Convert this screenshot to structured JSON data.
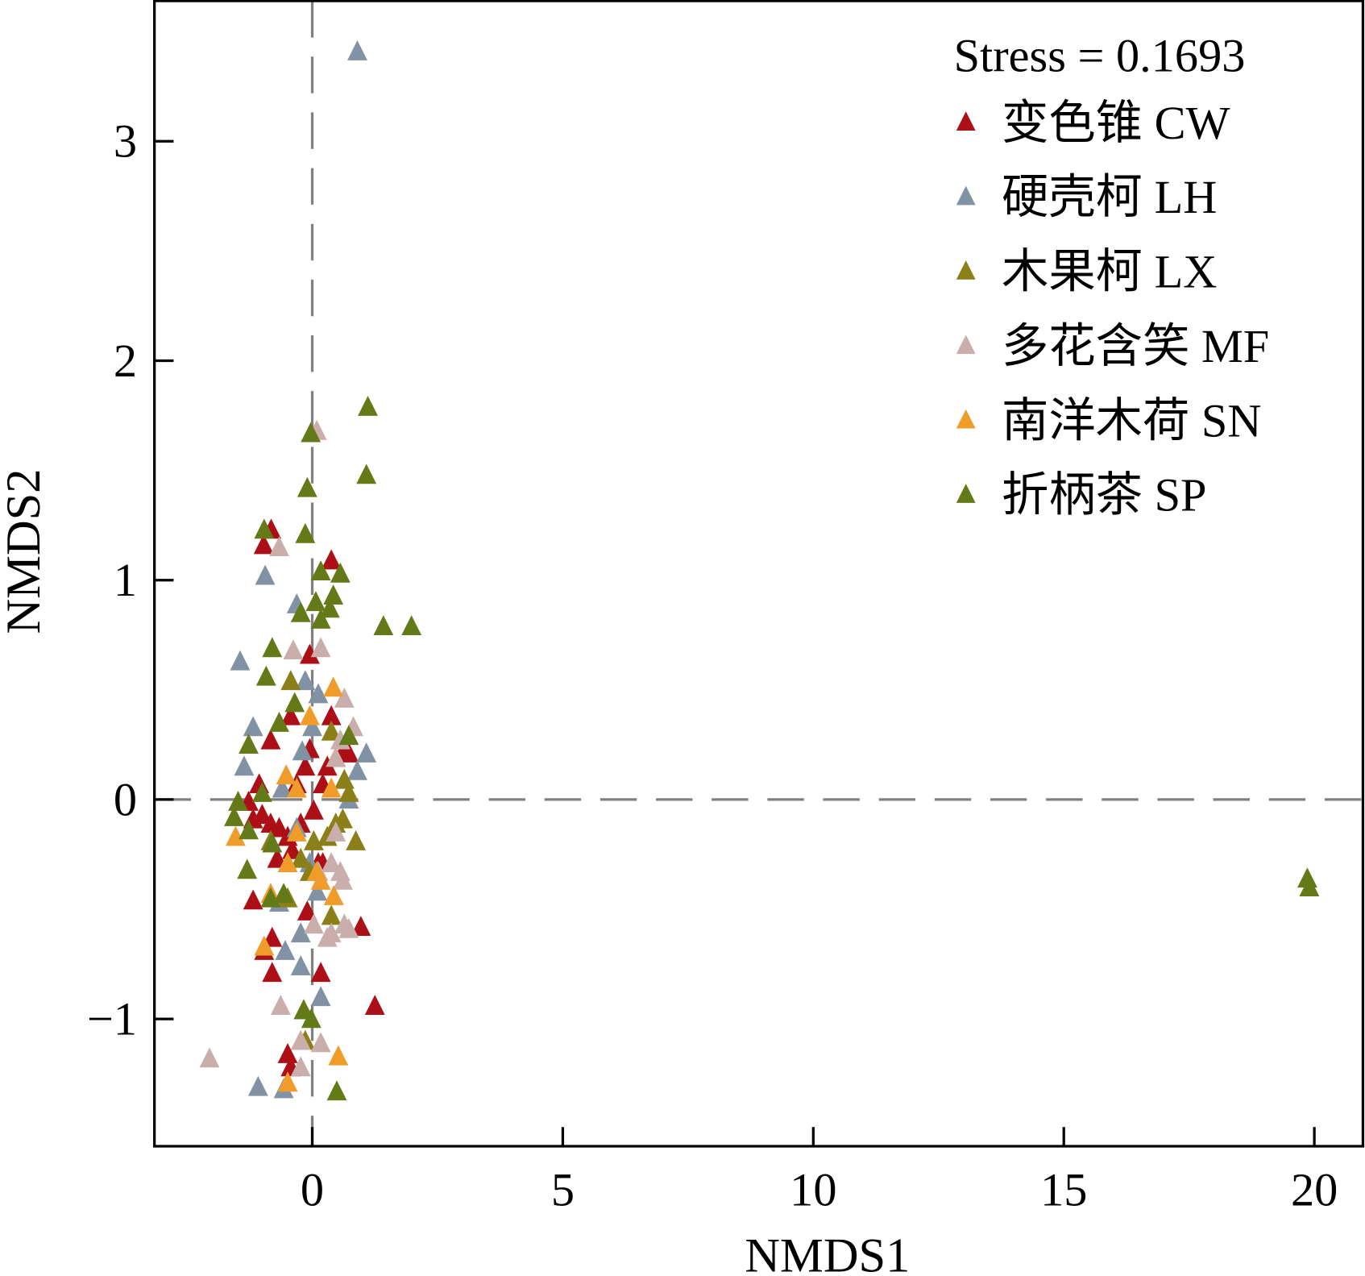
{
  "chart_data": {
    "type": "scatter",
    "title": "",
    "xlabel": "NMDS1",
    "ylabel": "NMDS2",
    "xlim": [
      -3.15,
      20.97
    ],
    "ylim": [
      -1.58,
      3.64
    ],
    "xticks": [
      0,
      5,
      10,
      15,
      20
    ],
    "yticks": [
      -1,
      0,
      1,
      2,
      3
    ],
    "xtick_labels": [
      "0",
      "5",
      "10",
      "15",
      "20"
    ],
    "ytick_labels": [
      "−1",
      "0",
      "1",
      "2",
      "3"
    ],
    "reference_lines": {
      "x": 0,
      "y": 0,
      "style": "dashed"
    },
    "annotation": "Stress = 0.1693",
    "legend_position": "top-right",
    "marker": "triangle",
    "series": [
      {
        "name": "变色锥 CW",
        "color": "#ad0f16",
        "points": [
          [
            0.38,
            1.09
          ],
          [
            -0.82,
            1.23
          ],
          [
            -0.97,
            1.16
          ],
          [
            -0.05,
            0.66
          ],
          [
            1.25,
            -0.94
          ],
          [
            0.97,
            -0.58
          ],
          [
            0.17,
            -0.79
          ],
          [
            -0.8,
            -0.79
          ],
          [
            -0.96,
            -0.69
          ],
          [
            -0.8,
            -0.63
          ],
          [
            -1.18,
            -0.46
          ],
          [
            -0.49,
            -1.16
          ],
          [
            -0.43,
            -1.22
          ],
          [
            0.09,
            -0.33
          ],
          [
            0.21,
            -0.29
          ],
          [
            -1.0,
            -0.07
          ],
          [
            -1.18,
            -0.09
          ],
          [
            -0.83,
            -0.11
          ],
          [
            -0.66,
            -0.13
          ],
          [
            -0.49,
            -0.17
          ],
          [
            -0.23,
            -0.11
          ],
          [
            0.03,
            -0.05
          ],
          [
            0.3,
            0.15
          ],
          [
            0.47,
            0.19
          ],
          [
            0.64,
            0.23
          ],
          [
            0.38,
            0.38
          ],
          [
            -0.43,
            0.38
          ],
          [
            -0.83,
            0.27
          ],
          [
            -1.06,
            0.07
          ],
          [
            -0.14,
            0.15
          ],
          [
            0.21,
            0.07
          ],
          [
            0.73,
            0.21
          ],
          [
            -0.7,
            -0.27
          ],
          [
            -0.4,
            -0.23
          ],
          [
            -0.1,
            -0.51
          ],
          [
            0.12,
            -0.29
          ],
          [
            -1.27,
            -0.01
          ],
          [
            -0.31,
            0.07
          ],
          [
            -0.05,
            0.23
          ]
        ]
      },
      {
        "name": "硬壳柯 LH",
        "color": "#8092a3",
        "points": [
          [
            0.9,
            3.41
          ],
          [
            -0.94,
            1.02
          ],
          [
            -0.31,
            0.89
          ],
          [
            -1.44,
            0.63
          ],
          [
            -1.08,
            -1.31
          ],
          [
            0.17,
            -0.9
          ],
          [
            -0.23,
            -0.76
          ],
          [
            -0.54,
            -0.69
          ],
          [
            1.08,
            0.21
          ],
          [
            0.9,
            0.13
          ],
          [
            0.73,
            0.0
          ],
          [
            -1.18,
            0.33
          ],
          [
            -1.36,
            0.15
          ],
          [
            -0.14,
            0.54
          ],
          [
            0.12,
            0.48
          ],
          [
            -0.66,
            -0.47
          ],
          [
            -0.23,
            -0.61
          ],
          [
            -0.57,
            -1.32
          ],
          [
            -0.05,
            -0.29
          ],
          [
            -0.31,
            -0.13
          ],
          [
            -0.6,
            0.05
          ],
          [
            0.0,
            0.33
          ],
          [
            -0.2,
            0.22
          ],
          [
            0.1,
            -0.42
          ]
        ]
      },
      {
        "name": "木果柯 LX",
        "color": "#8a7f18",
        "points": [
          [
            0.87,
            -0.19
          ],
          [
            0.61,
            -0.09
          ],
          [
            -0.43,
            0.54
          ],
          [
            -0.83,
            -0.19
          ],
          [
            -0.23,
            -0.27
          ],
          [
            0.03,
            -0.19
          ],
          [
            0.47,
            -0.11
          ],
          [
            0.38,
            -0.53
          ],
          [
            -0.17,
            -0.96
          ],
          [
            -0.14,
            -1.1
          ],
          [
            0.3,
            -0.17
          ],
          [
            0.64,
            0.09
          ],
          [
            -0.49,
            -0.45
          ],
          [
            0.38,
            0.31
          ],
          [
            0.73,
            0.03
          ],
          [
            -0.05,
            -0.33
          ]
        ]
      },
      {
        "name": "多花含笑 MF",
        "color": "#c9aeac",
        "points": [
          [
            0.09,
            1.68
          ],
          [
            -0.66,
            1.15
          ],
          [
            -0.38,
            0.68
          ],
          [
            0.17,
            0.69
          ],
          [
            0.64,
            0.46
          ],
          [
            0.82,
            0.33
          ],
          [
            0.56,
            0.27
          ],
          [
            0.47,
            0.19
          ],
          [
            -2.05,
            -1.18
          ],
          [
            -0.63,
            -0.94
          ],
          [
            -0.23,
            -1.22
          ],
          [
            0.17,
            -1.11
          ],
          [
            0.03,
            -0.57
          ],
          [
            0.38,
            -0.61
          ],
          [
            0.64,
            -0.57
          ],
          [
            0.3,
            -0.63
          ],
          [
            0.73,
            -0.59
          ],
          [
            0.56,
            -0.33
          ],
          [
            0.61,
            -0.37
          ],
          [
            0.38,
            -0.29
          ],
          [
            -0.23,
            -1.1
          ],
          [
            0.12,
            -0.33
          ],
          [
            0.47,
            -0.15
          ]
        ]
      },
      {
        "name": "南洋木荷 SN",
        "color": "#ef9c2b",
        "points": [
          [
            0.42,
            0.51
          ],
          [
            -0.05,
            0.38
          ],
          [
            -0.52,
            0.11
          ],
          [
            -0.31,
            0.05
          ],
          [
            -1.53,
            -0.17
          ],
          [
            0.52,
            -1.17
          ],
          [
            -0.49,
            -1.29
          ],
          [
            -0.96,
            -0.67
          ],
          [
            -0.83,
            -0.43
          ],
          [
            0.17,
            -0.37
          ],
          [
            0.43,
            -0.44
          ],
          [
            0.09,
            -0.33
          ],
          [
            -0.31,
            -0.15
          ],
          [
            0.38,
            0.05
          ],
          [
            -0.49,
            -0.29
          ]
        ]
      },
      {
        "name": "折柄茶 SP",
        "color": "#647a18",
        "points": [
          [
            1.11,
            1.79
          ],
          [
            -0.03,
            1.67
          ],
          [
            1.08,
            1.48
          ],
          [
            -0.1,
            1.42
          ],
          [
            -0.14,
            1.21
          ],
          [
            -0.96,
            1.23
          ],
          [
            0.17,
            1.04
          ],
          [
            0.56,
            1.03
          ],
          [
            0.42,
            0.93
          ],
          [
            0.07,
            0.9
          ],
          [
            -0.23,
            0.85
          ],
          [
            0.35,
            0.87
          ],
          [
            0.17,
            0.82
          ],
          [
            1.42,
            0.79
          ],
          [
            1.98,
            0.79
          ],
          [
            -0.8,
            0.69
          ],
          [
            -0.92,
            0.56
          ],
          [
            -0.35,
            0.44
          ],
          [
            -0.66,
            0.35
          ],
          [
            -1.27,
            0.25
          ],
          [
            -1.0,
            0.03
          ],
          [
            -1.48,
            -0.01
          ],
          [
            -1.56,
            -0.08
          ],
          [
            -1.27,
            -0.14
          ],
          [
            -1.3,
            -0.32
          ],
          [
            -0.8,
            -0.2
          ],
          [
            -0.57,
            -0.43
          ],
          [
            -0.17,
            -0.96
          ],
          [
            -0.02,
            -1.0
          ],
          [
            0.49,
            -1.33
          ],
          [
            19.86,
            -0.36
          ],
          [
            19.9,
            -0.4
          ],
          [
            0.73,
            0.29
          ],
          [
            -0.83,
            -0.45
          ]
        ]
      }
    ]
  }
}
